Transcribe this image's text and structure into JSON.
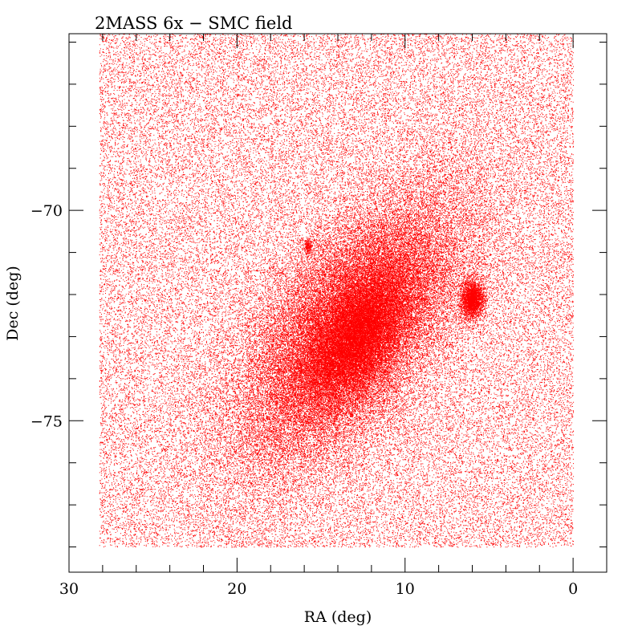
{
  "chart_data": {
    "type": "scatter",
    "title": "2MASS 6x  −  SMC field",
    "xlabel": "RA (deg)",
    "ylabel": "Dec (deg)",
    "xlim": [
      30,
      -2
    ],
    "ylim": [
      -78.6,
      -65.8
    ],
    "x_major_ticks": [
      30,
      20,
      10,
      0
    ],
    "x_tick_labels": [
      "30",
      "20",
      "10",
      "0"
    ],
    "x_minor_step": 2,
    "y_major_ticks": [
      -75,
      -70
    ],
    "y_tick_labels": [
      "−75",
      "−70"
    ],
    "y_minor_step": 1,
    "grid": false,
    "legend": "none",
    "marker_color": "#ff0000",
    "series": [
      {
        "description_free_points": true,
        "field_box": {
          "ra": [
            0,
            28.2
          ],
          "dec": [
            -78.0,
            -65.8
          ]
        },
        "background_density_points": 60000,
        "overdensities": [
          {
            "ra_center": 13.2,
            "dec_center": -72.8,
            "ra_sigma": 3.6,
            "dec_sigma": 1.25,
            "tilt_deg": -18,
            "points": 42000
          },
          {
            "ra_center": 12.8,
            "dec_center": -73.0,
            "ra_sigma": 1.6,
            "dec_sigma": 0.65,
            "tilt_deg": -18,
            "points": 14000
          },
          {
            "ra_center": 6.0,
            "dec_center": -72.1,
            "ra_sigma": 0.35,
            "dec_sigma": 0.22,
            "tilt_deg": 0,
            "points": 2600
          },
          {
            "ra_center": 15.8,
            "dec_center": -70.85,
            "ra_sigma": 0.12,
            "dec_sigma": 0.08,
            "tilt_deg": 0,
            "points": 220
          }
        ]
      }
    ]
  }
}
